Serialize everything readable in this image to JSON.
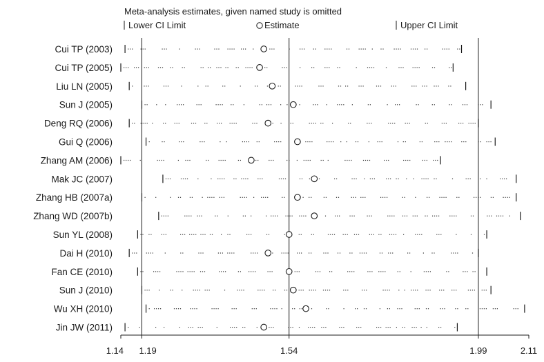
{
  "chart_data": {
    "type": "forest",
    "title": "Meta-analysis estimates, given named study is omitted",
    "legend": {
      "lower": "Lower CI Limit",
      "estimate": "Estimate",
      "upper": "Upper CI Limit"
    },
    "xlim": [
      1.14,
      2.11
    ],
    "xticks": [
      "1.14",
      "1.19",
      "1.54",
      "1.99",
      "2.11"
    ],
    "reference_lines": [
      1.19,
      1.54,
      1.99
    ],
    "studies": [
      {
        "label": "Cui TP (2003)",
        "lower": 1.15,
        "estimate": 1.48,
        "upper": 1.95
      },
      {
        "label": "Cui TP (2005)",
        "lower": 1.14,
        "estimate": 1.47,
        "upper": 1.93
      },
      {
        "label": "Liu LN (2005)",
        "lower": 1.16,
        "estimate": 1.5,
        "upper": 1.96
      },
      {
        "label": "Sun J (2005)",
        "lower": 1.19,
        "estimate": 1.55,
        "upper": 2.02
      },
      {
        "label": "Deng RQ (2006)",
        "lower": 1.16,
        "estimate": 1.49,
        "upper": 1.99
      },
      {
        "label": "Gui Q (2006)",
        "lower": 1.2,
        "estimate": 1.56,
        "upper": 2.03
      },
      {
        "label": "Zhang AM (2006)",
        "lower": 1.14,
        "estimate": 1.45,
        "upper": 1.9
      },
      {
        "label": "Mak JC (2007)",
        "lower": 1.24,
        "estimate": 1.6,
        "upper": 2.08
      },
      {
        "label": "Zhang HB (2007a)",
        "lower": 1.19,
        "estimate": 1.56,
        "upper": 2.08
      },
      {
        "label": "Zhang WD (2007b)",
        "lower": 1.23,
        "estimate": 1.6,
        "upper": 2.09
      },
      {
        "label": "Sun YL (2008)",
        "lower": 1.18,
        "estimate": 1.54,
        "upper": 2.01
      },
      {
        "label": "Dai H (2010)",
        "lower": 1.16,
        "estimate": 1.49,
        "upper": 1.99
      },
      {
        "label": "Fan CE (2010)",
        "lower": 1.18,
        "estimate": 1.54,
        "upper": 2.01
      },
      {
        "label": "Sun J (2010)",
        "lower": 1.19,
        "estimate": 1.55,
        "upper": 2.02
      },
      {
        "label": "Wu XH (2010)",
        "lower": 1.2,
        "estimate": 1.58,
        "upper": 2.1
      },
      {
        "label": "Jin JW (2011)",
        "lower": 1.15,
        "estimate": 1.48,
        "upper": 1.94
      }
    ],
    "grid": false
  }
}
